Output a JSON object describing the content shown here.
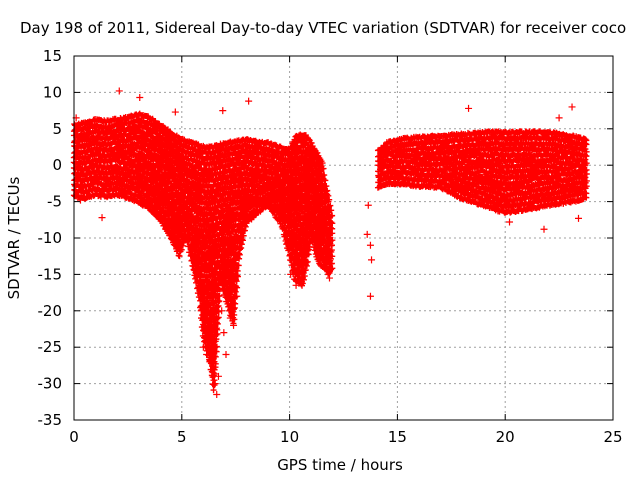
{
  "chart_data": {
    "type": "scatter",
    "title": "Day 198 of 2011, Sidereal Day-to-day VTEC variation (SDTVAR) for receiver coco",
    "xlabel": "GPS time / hours",
    "ylabel": "SDTVAR / TECUs",
    "xlim": [
      0,
      25
    ],
    "ylim": [
      -35,
      15
    ],
    "x_ticks": [
      0,
      5,
      10,
      15,
      20,
      25
    ],
    "y_ticks": [
      15,
      10,
      5,
      0,
      -5,
      -10,
      -15,
      -20,
      -25,
      -30,
      -35
    ],
    "grid": true,
    "marker": "+",
    "series_color": "#ff0000",
    "series": [
      {
        "name": "SDTVAR",
        "band_min": [
          [
            0.0,
            -4.2
          ],
          [
            0.5,
            -4.5
          ],
          [
            1.0,
            -4.0
          ],
          [
            1.5,
            -4.3
          ],
          [
            2.0,
            -4.0
          ],
          [
            2.5,
            -4.5
          ],
          [
            3.0,
            -5.0
          ],
          [
            3.5,
            -6.0
          ],
          [
            4.0,
            -7.5
          ],
          [
            4.5,
            -10.0
          ],
          [
            4.9,
            -12.5
          ],
          [
            5.2,
            -9.5
          ],
          [
            5.5,
            -14.0
          ],
          [
            5.8,
            -18.0
          ],
          [
            6.0,
            -24.0
          ],
          [
            6.3,
            -27.0
          ],
          [
            6.5,
            -31.5
          ],
          [
            6.8,
            -16.0
          ],
          [
            7.2,
            -20.0
          ],
          [
            7.4,
            -22.0
          ],
          [
            7.7,
            -12.0
          ],
          [
            8.0,
            -8.0
          ],
          [
            8.5,
            -6.5
          ],
          [
            9.0,
            -5.5
          ],
          [
            9.6,
            -8.0
          ],
          [
            10.0,
            -12.5
          ],
          [
            10.2,
            -15.5
          ],
          [
            10.6,
            -16.5
          ],
          [
            10.8,
            -14.0
          ],
          [
            11.0,
            -10.0
          ],
          [
            11.3,
            -13.0
          ],
          [
            11.8,
            -15.0
          ],
          [
            12.0,
            -14.0
          ]
        ],
        "band_max": [
          [
            0.0,
            5.5
          ],
          [
            0.5,
            5.8
          ],
          [
            1.0,
            6.2
          ],
          [
            1.5,
            6.0
          ],
          [
            2.0,
            6.3
          ],
          [
            2.5,
            6.5
          ],
          [
            3.0,
            7.0
          ],
          [
            3.5,
            6.5
          ],
          [
            4.0,
            5.5
          ],
          [
            4.5,
            4.5
          ],
          [
            5.0,
            3.5
          ],
          [
            5.5,
            3.0
          ],
          [
            6.0,
            2.5
          ],
          [
            6.5,
            2.5
          ],
          [
            7.0,
            3.0
          ],
          [
            7.5,
            3.2
          ],
          [
            8.0,
            3.5
          ],
          [
            8.5,
            3.2
          ],
          [
            9.0,
            3.0
          ],
          [
            9.5,
            2.5
          ],
          [
            10.0,
            2.2
          ],
          [
            10.3,
            4.0
          ],
          [
            10.7,
            4.2
          ],
          [
            11.0,
            3.0
          ],
          [
            11.5,
            0.5
          ],
          [
            12.0,
            -7.5
          ]
        ],
        "band_min_2": [
          [
            14.1,
            -3.0
          ],
          [
            14.5,
            -2.5
          ],
          [
            15.0,
            -2.5
          ],
          [
            16.0,
            -2.8
          ],
          [
            17.0,
            -3.0
          ],
          [
            18.0,
            -4.5
          ],
          [
            19.0,
            -5.5
          ],
          [
            20.0,
            -6.5
          ],
          [
            21.0,
            -6.0
          ],
          [
            22.0,
            -5.5
          ],
          [
            23.0,
            -5.0
          ],
          [
            23.8,
            -4.5
          ]
        ],
        "band_max_2": [
          [
            14.1,
            2.0
          ],
          [
            14.5,
            3.0
          ],
          [
            15.0,
            3.5
          ],
          [
            16.0,
            3.8
          ],
          [
            17.0,
            4.0
          ],
          [
            18.0,
            4.2
          ],
          [
            19.0,
            4.5
          ],
          [
            20.0,
            4.5
          ],
          [
            21.0,
            4.5
          ],
          [
            22.0,
            4.5
          ],
          [
            23.0,
            4.0
          ],
          [
            23.8,
            3.5
          ]
        ],
        "dip_spikes": [
          [
            5.9,
            -20
          ],
          [
            6.0,
            -25
          ],
          [
            6.15,
            -26
          ],
          [
            6.3,
            -27
          ],
          [
            6.45,
            -28.5
          ],
          [
            6.55,
            -30
          ],
          [
            6.62,
            -31.5
          ],
          [
            6.7,
            -29
          ],
          [
            6.85,
            -20
          ],
          [
            6.95,
            -23
          ],
          [
            7.05,
            -26
          ],
          [
            7.25,
            -21
          ],
          [
            7.4,
            -22
          ],
          [
            7.55,
            -18
          ],
          [
            10.05,
            -15
          ],
          [
            10.3,
            -16.5
          ],
          [
            10.55,
            -16
          ],
          [
            11.85,
            -15.5
          ]
        ],
        "outliers": [
          [
            2.1,
            10.2
          ],
          [
            3.05,
            9.3
          ],
          [
            4.7,
            7.3
          ],
          [
            6.9,
            7.5
          ],
          [
            8.1,
            8.8
          ],
          [
            18.3,
            7.8
          ],
          [
            22.5,
            6.5
          ],
          [
            23.1,
            8.0
          ],
          [
            13.75,
            -18.0
          ],
          [
            13.8,
            -13.0
          ],
          [
            13.75,
            -11.0
          ],
          [
            13.6,
            -9.5
          ],
          [
            13.65,
            -5.5
          ],
          [
            1.3,
            -7.2
          ],
          [
            0.3,
            -4.8
          ],
          [
            0.1,
            6.5
          ],
          [
            4.4,
            -6.8
          ],
          [
            21.8,
            -8.8
          ],
          [
            23.4,
            -7.3
          ],
          [
            20.2,
            -7.8
          ],
          [
            11.6,
            -6.0
          ]
        ]
      }
    ]
  }
}
